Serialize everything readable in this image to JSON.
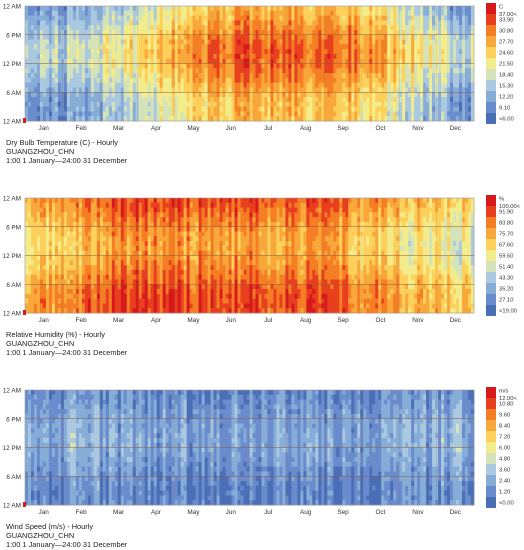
{
  "chart_data": [
    {
      "type": "heatmap",
      "title": "Dry Bulb Temperature (C) - Hourly",
      "location": "GUANGZHOU_CHN",
      "period": "1:00 1 January—24:00 31 December",
      "x_tick_labels": [
        "Jan",
        "Feb",
        "Mar",
        "Apr",
        "May",
        "Jun",
        "Jul",
        "Aug",
        "Sep",
        "Oct",
        "Nov",
        "Dec"
      ],
      "y_tick_labels": [
        "12 AM",
        "6 PM",
        "12 PM",
        "6 AM",
        "12 AM"
      ],
      "legend_unit": "C",
      "legend_labels": [
        "37.00<",
        "33.90",
        "30.80",
        "27.70",
        "24.60",
        "21.50",
        "18.40",
        "15.30",
        "12.20",
        "9.10",
        "<6.00"
      ],
      "monthly_typical_values": [
        13.5,
        15.0,
        18.0,
        22.0,
        26.0,
        28.0,
        29.0,
        28.5,
        27.5,
        24.5,
        19.5,
        15.0
      ],
      "daily_swing": 6,
      "colorscale": [
        "#d7191c",
        "#e8401f",
        "#f57e24",
        "#f8a83b",
        "#fdd05b",
        "#f3ec8a",
        "#d5e4b8",
        "#aac8e0",
        "#86acd8",
        "#6b8ccc",
        "#4a6fb7"
      ]
    },
    {
      "type": "heatmap",
      "title": "Relative Humidity (%) - Hourly",
      "location": "GUANGZHOU_CHN",
      "period": "1:00 1 January—24:00 31 December",
      "x_tick_labels": [
        "Jan",
        "Feb",
        "Mar",
        "Apr",
        "May",
        "Jun",
        "Jul",
        "Aug",
        "Sep",
        "Oct",
        "Nov",
        "Dec"
      ],
      "y_tick_labels": [
        "12 AM",
        "6 PM",
        "12 PM",
        "6 AM",
        "12 AM"
      ],
      "legend_unit": "%",
      "legend_labels": [
        "100.00<",
        "91.90",
        "83.80",
        "75.70",
        "67.60",
        "59.50",
        "51.40",
        "43.30",
        "35.20",
        "27.10",
        "<19.00"
      ],
      "monthly_typical_values": [
        72,
        76,
        84,
        84,
        82,
        83,
        80,
        80,
        77,
        70,
        66,
        62
      ],
      "daily_swing": 14,
      "colorscale": [
        "#d7191c",
        "#e8401f",
        "#f57e24",
        "#f8a83b",
        "#fdd05b",
        "#f3ec8a",
        "#d5e4b8",
        "#aac8e0",
        "#86acd8",
        "#6b8ccc",
        "#4a6fb7"
      ]
    },
    {
      "type": "heatmap",
      "title": "Wind Speed (m/s) - Hourly",
      "location": "GUANGZHOU_CHN",
      "period": "1:00 1 January—24:00 31 December",
      "x_tick_labels": [
        "Jan",
        "Feb",
        "Mar",
        "Apr",
        "May",
        "Jun",
        "Jul",
        "Aug",
        "Sep",
        "Oct",
        "Nov",
        "Dec"
      ],
      "y_tick_labels": [
        "12 AM",
        "6 PM",
        "12 PM",
        "6 AM",
        "12 AM"
      ],
      "legend_unit": "m/s",
      "legend_labels": [
        "12.00<",
        "10.80",
        "9.60",
        "8.40",
        "7.20",
        "6.00",
        "4.80",
        "3.60",
        "2.40",
        "1.20",
        "<0.00"
      ],
      "monthly_typical_values": [
        2.2,
        2.3,
        2.1,
        2.0,
        2.0,
        2.0,
        2.1,
        2.0,
        2.0,
        2.1,
        2.2,
        2.3
      ],
      "daily_swing": 1.2,
      "colorscale": [
        "#d7191c",
        "#e8401f",
        "#f57e24",
        "#f8a83b",
        "#fdd05b",
        "#f3ec8a",
        "#d5e4b8",
        "#aac8e0",
        "#86acd8",
        "#6b8ccc",
        "#4a6fb7"
      ]
    }
  ]
}
